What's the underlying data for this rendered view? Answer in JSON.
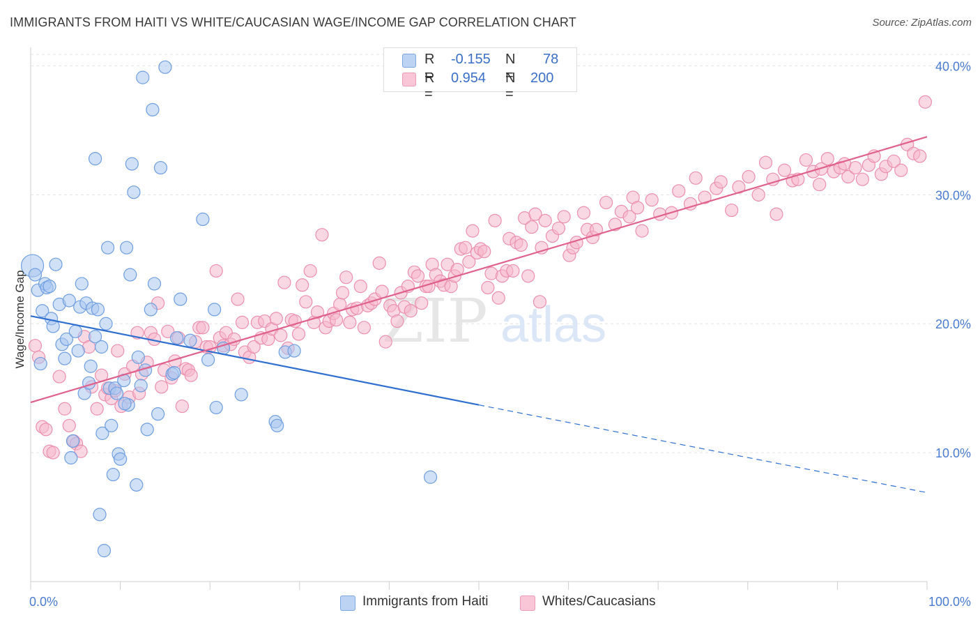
{
  "header": {
    "title": "IMMIGRANTS FROM HAITI VS WHITE/CAUCASIAN WAGE/INCOME GAP CORRELATION CHART",
    "source": "Source: ZipAtlas.com"
  },
  "watermark": {
    "zip": "ZIP",
    "atlas": "atlas"
  },
  "legend": {
    "rows": [
      {
        "r_label": "R =",
        "r_value": "-0.155",
        "n_label": "N =",
        "n_value": "78"
      },
      {
        "r_label": "R =",
        "r_value": "0.954",
        "n_label": "N =",
        "n_value": "200"
      }
    ]
  },
  "bottom_legend": {
    "haiti": "Immigrants from Haiti",
    "white": "Whites/Caucasians"
  },
  "colors": {
    "haiti_fill": "#a9c6f0",
    "haiti_stroke": "#6f9ee0",
    "haiti_line": "#2f6fd0",
    "white_fill": "#f6b8cc",
    "white_stroke": "#ec8fae",
    "white_line": "#e0608e",
    "tick_text": "#4a7bd0"
  },
  "chart_data": {
    "type": "scatter",
    "title": "IMMIGRANTS FROM HAITI VS WHITE/CAUCASIAN WAGE/INCOME GAP CORRELATION CHART",
    "xlabel": "",
    "ylabel": "Wage/Income Gap",
    "xlim": [
      0,
      100
    ],
    "ylim": [
      0,
      41
    ],
    "x_tick_labels": [
      "0.0%",
      "100.0%"
    ],
    "y_ticks": [
      10,
      20,
      30,
      40
    ],
    "y_tick_labels": [
      "10.0%",
      "20.0%",
      "30.0%",
      "40.0%"
    ],
    "grid": true,
    "legend_position": "top-center",
    "series": [
      {
        "name": "Immigrants from Haiti",
        "r": -0.155,
        "n": 78,
        "trend": {
          "x0": 0,
          "y0": 20.6,
          "x1": 50,
          "y1": 13.7,
          "dashed_to_x": 100,
          "dashed_to_y": 6.9
        },
        "points": [
          [
            0.2,
            24.5
          ],
          [
            0.5,
            23.8
          ],
          [
            0.8,
            22.6
          ],
          [
            1.1,
            16.9
          ],
          [
            1.3,
            21.0
          ],
          [
            1.6,
            23.1
          ],
          [
            1.8,
            22.8
          ],
          [
            2.1,
            22.9
          ],
          [
            2.3,
            20.4
          ],
          [
            2.5,
            19.8
          ],
          [
            2.8,
            24.6
          ],
          [
            3.2,
            21.5
          ],
          [
            3.5,
            18.4
          ],
          [
            3.8,
            17.3
          ],
          [
            4.0,
            18.8
          ],
          [
            4.3,
            21.8
          ],
          [
            4.5,
            9.6
          ],
          [
            4.7,
            10.9
          ],
          [
            5.0,
            19.4
          ],
          [
            5.3,
            17.9
          ],
          [
            5.5,
            21.3
          ],
          [
            5.7,
            23.1
          ],
          [
            6.0,
            14.6
          ],
          [
            6.2,
            21.6
          ],
          [
            6.5,
            15.4
          ],
          [
            6.7,
            16.7
          ],
          [
            6.9,
            21.2
          ],
          [
            7.2,
            19.0
          ],
          [
            7.5,
            21.1
          ],
          [
            7.7,
            5.2
          ],
          [
            7.9,
            18.2
          ],
          [
            8.0,
            11.5
          ],
          [
            8.2,
            2.4
          ],
          [
            8.4,
            20.0
          ],
          [
            8.6,
            25.9
          ],
          [
            8.8,
            15.0
          ],
          [
            9.0,
            12.1
          ],
          [
            9.2,
            8.3
          ],
          [
            9.4,
            15.0
          ],
          [
            9.6,
            14.6
          ],
          [
            9.8,
            9.9
          ],
          [
            10.0,
            9.5
          ],
          [
            10.4,
            15.6
          ],
          [
            10.7,
            25.9
          ],
          [
            10.9,
            13.7
          ],
          [
            11.1,
            23.8
          ],
          [
            11.3,
            32.4
          ],
          [
            11.5,
            30.2
          ],
          [
            11.8,
            7.5
          ],
          [
            12.0,
            17.4
          ],
          [
            12.3,
            15.2
          ],
          [
            12.5,
            39.1
          ],
          [
            12.8,
            16.4
          ],
          [
            13.0,
            11.8
          ],
          [
            13.4,
            21.1
          ],
          [
            13.6,
            36.6
          ],
          [
            13.8,
            23.1
          ],
          [
            14.2,
            13.0
          ],
          [
            14.5,
            32.1
          ],
          [
            15.0,
            39.9
          ],
          [
            15.8,
            16.1
          ],
          [
            16.3,
            18.9
          ],
          [
            16.7,
            21.9
          ],
          [
            17.8,
            18.7
          ],
          [
            19.2,
            28.1
          ],
          [
            19.8,
            17.2
          ],
          [
            20.5,
            21.1
          ],
          [
            20.7,
            13.5
          ],
          [
            21.5,
            18.1
          ],
          [
            23.5,
            14.5
          ],
          [
            27.3,
            12.4
          ],
          [
            27.5,
            12.1
          ],
          [
            28.4,
            17.8
          ],
          [
            29.4,
            17.9
          ],
          [
            44.6,
            8.1
          ],
          [
            7.2,
            32.8
          ],
          [
            10.5,
            13.8
          ],
          [
            16.0,
            16.2
          ]
        ]
      },
      {
        "name": "Whites/Caucasians",
        "r": 0.954,
        "n": 200,
        "trend": {
          "x0": 0,
          "y0": 13.9,
          "x1": 100,
          "y1": 34.5
        },
        "points": [
          [
            0.5,
            18.3
          ],
          [
            0.9,
            17.4
          ],
          [
            1.3,
            12.0
          ],
          [
            1.7,
            11.8
          ],
          [
            2.1,
            10.1
          ],
          [
            2.5,
            10.0
          ],
          [
            3.2,
            15.9
          ],
          [
            3.8,
            13.4
          ],
          [
            4.3,
            12.1
          ],
          [
            4.8,
            10.9
          ],
          [
            5.1,
            10.7
          ],
          [
            5.6,
            10.1
          ],
          [
            6.0,
            19.0
          ],
          [
            6.5,
            18.2
          ],
          [
            6.8,
            15.1
          ],
          [
            7.4,
            13.4
          ],
          [
            7.9,
            16.0
          ],
          [
            8.3,
            14.5
          ],
          [
            8.6,
            15.0
          ],
          [
            9.0,
            14.2
          ],
          [
            9.4,
            14.8
          ],
          [
            9.7,
            17.9
          ],
          [
            10.1,
            13.6
          ],
          [
            10.5,
            16.1
          ],
          [
            11.0,
            14.3
          ],
          [
            11.4,
            16.7
          ],
          [
            11.9,
            19.3
          ],
          [
            12.1,
            14.6
          ],
          [
            12.4,
            16.1
          ],
          [
            13.0,
            17.0
          ],
          [
            13.4,
            19.3
          ],
          [
            13.8,
            18.8
          ],
          [
            14.2,
            21.6
          ],
          [
            14.6,
            15.1
          ],
          [
            14.9,
            16.4
          ],
          [
            15.3,
            19.4
          ],
          [
            15.7,
            15.8
          ],
          [
            16.1,
            17.1
          ],
          [
            16.5,
            18.9
          ],
          [
            16.9,
            13.6
          ],
          [
            17.3,
            16.5
          ],
          [
            17.6,
            16.4
          ],
          [
            17.9,
            16.0
          ],
          [
            18.4,
            18.6
          ],
          [
            18.8,
            19.7
          ],
          [
            19.2,
            19.7
          ],
          [
            19.6,
            18.2
          ],
          [
            20.0,
            18.2
          ],
          [
            20.7,
            24.1
          ],
          [
            21.1,
            18.9
          ],
          [
            21.5,
            18.3
          ],
          [
            21.8,
            19.3
          ],
          [
            22.3,
            18.4
          ],
          [
            22.7,
            18.8
          ],
          [
            23.1,
            21.9
          ],
          [
            23.6,
            20.1
          ],
          [
            23.9,
            17.8
          ],
          [
            24.4,
            17.4
          ],
          [
            24.9,
            18.2
          ],
          [
            25.3,
            20.1
          ],
          [
            25.7,
            18.9
          ],
          [
            26.1,
            20.2
          ],
          [
            26.5,
            18.8
          ],
          [
            26.9,
            19.6
          ],
          [
            27.4,
            20.4
          ],
          [
            27.9,
            19.1
          ],
          [
            28.3,
            23.2
          ],
          [
            28.7,
            18.1
          ],
          [
            29.1,
            20.3
          ],
          [
            29.5,
            20.2
          ],
          [
            29.9,
            19.2
          ],
          [
            30.3,
            23.0
          ],
          [
            30.7,
            21.7
          ],
          [
            31.2,
            24.1
          ],
          [
            31.6,
            20.1
          ],
          [
            32.0,
            20.9
          ],
          [
            32.5,
            26.9
          ],
          [
            32.9,
            19.7
          ],
          [
            33.3,
            20.2
          ],
          [
            33.8,
            20.8
          ],
          [
            34.1,
            20.3
          ],
          [
            34.5,
            21.5
          ],
          [
            34.8,
            22.4
          ],
          [
            35.2,
            23.6
          ],
          [
            35.6,
            20.1
          ],
          [
            35.9,
            21.1
          ],
          [
            36.4,
            21.2
          ],
          [
            36.8,
            22.9
          ],
          [
            37.2,
            19.7
          ],
          [
            37.6,
            21.4
          ],
          [
            38.0,
            21.6
          ],
          [
            38.4,
            21.9
          ],
          [
            38.9,
            24.7
          ],
          [
            39.2,
            22.5
          ],
          [
            39.6,
            18.6
          ],
          [
            40.1,
            21.4
          ],
          [
            40.5,
            21.0
          ],
          [
            40.9,
            20.2
          ],
          [
            41.3,
            22.4
          ],
          [
            41.7,
            21.3
          ],
          [
            42.1,
            22.9
          ],
          [
            42.4,
            21.0
          ],
          [
            42.8,
            24.0
          ],
          [
            43.2,
            23.7
          ],
          [
            43.6,
            21.6
          ],
          [
            44.1,
            22.9
          ],
          [
            44.4,
            22.9
          ],
          [
            44.8,
            24.6
          ],
          [
            45.2,
            23.8
          ],
          [
            45.7,
            23.3
          ],
          [
            46.1,
            23.0
          ],
          [
            46.5,
            24.6
          ],
          [
            46.9,
            22.9
          ],
          [
            47.3,
            23.7
          ],
          [
            47.6,
            24.2
          ],
          [
            48.0,
            25.8
          ],
          [
            48.5,
            25.9
          ],
          [
            48.9,
            24.8
          ],
          [
            49.3,
            27.2
          ],
          [
            49.8,
            25.5
          ],
          [
            50.2,
            25.8
          ],
          [
            50.6,
            25.6
          ],
          [
            51.0,
            22.8
          ],
          [
            51.4,
            23.9
          ],
          [
            51.8,
            28.0
          ],
          [
            52.2,
            22.0
          ],
          [
            52.6,
            23.7
          ],
          [
            53.1,
            24.1
          ],
          [
            53.4,
            26.6
          ],
          [
            53.8,
            24.1
          ],
          [
            54.2,
            26.3
          ],
          [
            54.7,
            26.1
          ],
          [
            55.1,
            28.2
          ],
          [
            55.5,
            23.7
          ],
          [
            55.9,
            27.5
          ],
          [
            56.3,
            28.5
          ],
          [
            56.8,
            21.7
          ],
          [
            57.0,
            25.9
          ],
          [
            57.4,
            28.0
          ],
          [
            58.2,
            26.8
          ],
          [
            58.9,
            27.4
          ],
          [
            59.5,
            28.3
          ],
          [
            60.1,
            25.3
          ],
          [
            60.5,
            25.9
          ],
          [
            60.9,
            26.3
          ],
          [
            61.7,
            28.6
          ],
          [
            62.1,
            27.3
          ],
          [
            62.7,
            26.7
          ],
          [
            63.1,
            27.3
          ],
          [
            64.2,
            29.4
          ],
          [
            65.2,
            27.7
          ],
          [
            65.9,
            28.7
          ],
          [
            66.8,
            28.3
          ],
          [
            67.2,
            29.8
          ],
          [
            67.7,
            29.0
          ],
          [
            68.2,
            27.2
          ],
          [
            69.3,
            29.6
          ],
          [
            70.2,
            28.5
          ],
          [
            71.5,
            28.6
          ],
          [
            72.3,
            30.3
          ],
          [
            73.6,
            29.3
          ],
          [
            74.2,
            31.3
          ],
          [
            75.2,
            29.8
          ],
          [
            76.5,
            30.5
          ],
          [
            77.0,
            31.0
          ],
          [
            78.2,
            28.8
          ],
          [
            79.0,
            30.6
          ],
          [
            80.1,
            31.4
          ],
          [
            81.2,
            30.0
          ],
          [
            82.0,
            32.5
          ],
          [
            82.8,
            31.2
          ],
          [
            83.2,
            28.5
          ],
          [
            84.1,
            31.9
          ],
          [
            85.0,
            31.1
          ],
          [
            85.6,
            31.2
          ],
          [
            86.5,
            32.7
          ],
          [
            87.3,
            31.8
          ],
          [
            88.2,
            32.0
          ],
          [
            88.9,
            32.8
          ],
          [
            89.6,
            31.8
          ],
          [
            90.3,
            32.1
          ],
          [
            91.2,
            31.4
          ],
          [
            92.0,
            32.1
          ],
          [
            92.8,
            31.2
          ],
          [
            93.5,
            32.3
          ],
          [
            94.1,
            33.0
          ],
          [
            94.9,
            31.6
          ],
          [
            95.4,
            32.2
          ],
          [
            96.3,
            32.6
          ],
          [
            97.1,
            31.9
          ],
          [
            97.8,
            33.9
          ],
          [
            98.5,
            33.2
          ],
          [
            99.2,
            33.0
          ],
          [
            99.8,
            37.2
          ],
          [
            90.8,
            32.4
          ],
          [
            88.0,
            30.8
          ]
        ]
      }
    ]
  }
}
